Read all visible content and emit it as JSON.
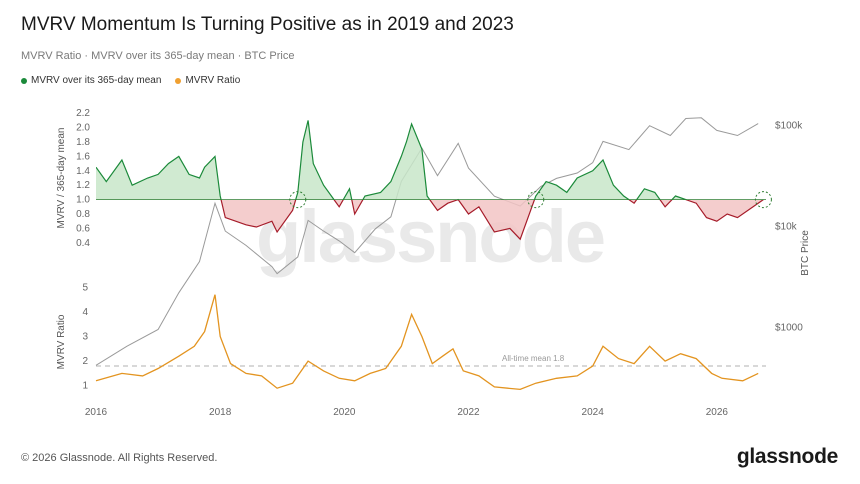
{
  "title": "MVRV Momentum Is Turning Positive as in 2019 and 2023",
  "subtitle": "MVRV Ratio · MVRV over its 365-day mean · BTC Price",
  "legend": [
    {
      "label": "MVRV over its 365-day mean",
      "color": "#1b8a3a"
    },
    {
      "label": "MVRV Ratio",
      "color": "#f0a030"
    }
  ],
  "footer": "© 2026 Glassnode. All Rights Reserved.",
  "brand": "glassnode",
  "watermark": "glassnode",
  "chart_data": {
    "type": "line",
    "x_ticks": [
      "2016",
      "2018",
      "2020",
      "2022",
      "2024",
      "2026"
    ],
    "panels": [
      {
        "name": "top",
        "ylabel": "MVRV / 365-day mean",
        "y_ticks": [
          "2.2",
          "2.0",
          "1.8",
          "1.6",
          "1.4",
          "1.2",
          "1.0",
          "0.8",
          "0.6",
          "0.4"
        ],
        "ylim": [
          0.3,
          2.3
        ],
        "baseline": 1.0,
        "colors": {
          "line_above": "#1b8a3a",
          "fill_above": "#c8e6c9",
          "line_below": "#a61c2a",
          "fill_below": "#f2c4c4"
        },
        "series": [
          {
            "name": "MVRV over its 365-day mean",
            "points": [
              [
                "2016-01",
                1.45
              ],
              [
                "2016-03",
                1.25
              ],
              [
                "2016-06",
                1.55
              ],
              [
                "2016-08",
                1.2
              ],
              [
                "2016-11",
                1.3
              ],
              [
                "2017-01",
                1.35
              ],
              [
                "2017-03",
                1.5
              ],
              [
                "2017-05",
                1.6
              ],
              [
                "2017-07",
                1.35
              ],
              [
                "2017-09",
                1.3
              ],
              [
                "2017-10",
                1.45
              ],
              [
                "2017-12",
                1.6
              ],
              [
                "2018-01",
                1.05
              ],
              [
                "2018-02",
                0.75
              ],
              [
                "2018-04",
                0.7
              ],
              [
                "2018-06",
                0.65
              ],
              [
                "2018-08",
                0.62
              ],
              [
                "2018-11",
                0.7
              ],
              [
                "2018-12",
                0.55
              ],
              [
                "2019-03",
                0.85
              ],
              [
                "2019-04",
                1.1
              ],
              [
                "2019-05",
                1.8
              ],
              [
                "2019-06",
                2.1
              ],
              [
                "2019-07",
                1.5
              ],
              [
                "2019-09",
                1.2
              ],
              [
                "2019-11",
                1.0
              ],
              [
                "2019-12",
                0.9
              ],
              [
                "2020-02",
                1.15
              ],
              [
                "2020-03",
                0.8
              ],
              [
                "2020-05",
                1.05
              ],
              [
                "2020-08",
                1.1
              ],
              [
                "2020-10",
                1.25
              ],
              [
                "2020-12",
                1.6
              ],
              [
                "2021-01",
                1.8
              ],
              [
                "2021-02",
                2.05
              ],
              [
                "2021-04",
                1.7
              ],
              [
                "2021-05",
                1.05
              ],
              [
                "2021-07",
                0.85
              ],
              [
                "2021-09",
                0.95
              ],
              [
                "2021-11",
                1.0
              ],
              [
                "2022-01",
                0.8
              ],
              [
                "2022-03",
                0.9
              ],
              [
                "2022-06",
                0.55
              ],
              [
                "2022-09",
                0.6
              ],
              [
                "2022-11",
                0.45
              ],
              [
                "2023-01",
                0.85
              ],
              [
                "2023-02",
                1.05
              ],
              [
                "2023-04",
                1.25
              ],
              [
                "2023-06",
                1.2
              ],
              [
                "2023-08",
                1.1
              ],
              [
                "2023-10",
                1.3
              ],
              [
                "2024-01",
                1.4
              ],
              [
                "2024-03",
                1.55
              ],
              [
                "2024-05",
                1.2
              ],
              [
                "2024-07",
                1.05
              ],
              [
                "2024-09",
                0.95
              ],
              [
                "2024-11",
                1.15
              ],
              [
                "2025-01",
                1.1
              ],
              [
                "2025-03",
                0.9
              ],
              [
                "2025-05",
                1.05
              ],
              [
                "2025-07",
                1.0
              ],
              [
                "2025-09",
                0.95
              ],
              [
                "2025-11",
                0.75
              ],
              [
                "2026-01",
                0.7
              ],
              [
                "2026-03",
                0.8
              ],
              [
                "2026-05",
                0.75
              ],
              [
                "2026-08",
                0.9
              ],
              [
                "2026-10",
                1.0
              ]
            ]
          }
        ],
        "annotations": [
          "2019-04",
          "2023-02",
          "2026-10"
        ]
      },
      {
        "name": "bottom",
        "ylabel": "MVRV Ratio",
        "y_ticks": [
          "5",
          "4",
          "3",
          "2",
          "1"
        ],
        "ylim": [
          0.5,
          5.5
        ],
        "reference_line": {
          "value": 1.8,
          "label": "All-time mean 1.8"
        },
        "series": [
          {
            "name": "MVRV Ratio",
            "color": "#e39420",
            "points": [
              [
                "2016-01",
                1.2
              ],
              [
                "2016-06",
                1.5
              ],
              [
                "2016-10",
                1.4
              ],
              [
                "2017-01",
                1.7
              ],
              [
                "2017-05",
                2.2
              ],
              [
                "2017-08",
                2.6
              ],
              [
                "2017-10",
                3.2
              ],
              [
                "2017-12",
                4.7
              ],
              [
                "2018-01",
                3.0
              ],
              [
                "2018-03",
                1.9
              ],
              [
                "2018-06",
                1.5
              ],
              [
                "2018-09",
                1.4
              ],
              [
                "2018-12",
                0.9
              ],
              [
                "2019-03",
                1.1
              ],
              [
                "2019-06",
                2.0
              ],
              [
                "2019-09",
                1.6
              ],
              [
                "2019-12",
                1.3
              ],
              [
                "2020-03",
                1.2
              ],
              [
                "2020-06",
                1.5
              ],
              [
                "2020-09",
                1.7
              ],
              [
                "2020-12",
                2.6
              ],
              [
                "2021-02",
                3.9
              ],
              [
                "2021-04",
                3.0
              ],
              [
                "2021-06",
                1.9
              ],
              [
                "2021-08",
                2.2
              ],
              [
                "2021-10",
                2.5
              ],
              [
                "2021-12",
                1.6
              ],
              [
                "2022-03",
                1.4
              ],
              [
                "2022-06",
                0.95
              ],
              [
                "2022-11",
                0.85
              ],
              [
                "2023-02",
                1.1
              ],
              [
                "2023-06",
                1.3
              ],
              [
                "2023-10",
                1.4
              ],
              [
                "2024-01",
                1.8
              ],
              [
                "2024-03",
                2.6
              ],
              [
                "2024-06",
                2.1
              ],
              [
                "2024-09",
                1.9
              ],
              [
                "2024-12",
                2.6
              ],
              [
                "2025-03",
                2.0
              ],
              [
                "2025-06",
                2.3
              ],
              [
                "2025-09",
                2.1
              ],
              [
                "2025-12",
                1.5
              ],
              [
                "2026-02",
                1.3
              ],
              [
                "2026-06",
                1.2
              ],
              [
                "2026-09",
                1.5
              ]
            ]
          }
        ]
      }
    ],
    "right_axis": {
      "label": "BTC Price",
      "scale": "log",
      "ticks": [
        "$100k",
        "$10k",
        "$1000"
      ],
      "series": [
        {
          "name": "BTC Price",
          "color": "#9a9a9a",
          "points": [
            [
              "2016-01",
              420
            ],
            [
              "2016-07",
              650
            ],
            [
              "2017-01",
              950
            ],
            [
              "2017-05",
              2200
            ],
            [
              "2017-09",
              4500
            ],
            [
              "2017-12",
              17000
            ],
            [
              "2018-02",
              9000
            ],
            [
              "2018-06",
              6500
            ],
            [
              "2018-11",
              4000
            ],
            [
              "2018-12",
              3400
            ],
            [
              "2019-04",
              5000
            ],
            [
              "2019-06",
              11500
            ],
            [
              "2019-09",
              9000
            ],
            [
              "2019-12",
              7200
            ],
            [
              "2020-03",
              5500
            ],
            [
              "2020-07",
              9500
            ],
            [
              "2020-10",
              12500
            ],
            [
              "2020-12",
              28000
            ],
            [
              "2021-04",
              60000
            ],
            [
              "2021-07",
              32000
            ],
            [
              "2021-11",
              67000
            ],
            [
              "2022-01",
              38000
            ],
            [
              "2022-06",
              20000
            ],
            [
              "2022-11",
              16000
            ],
            [
              "2023-03",
              25000
            ],
            [
              "2023-06",
              30000
            ],
            [
              "2023-10",
              34000
            ],
            [
              "2024-01",
              43000
            ],
            [
              "2024-03",
              70000
            ],
            [
              "2024-08",
              58000
            ],
            [
              "2024-12",
              100000
            ],
            [
              "2025-04",
              80000
            ],
            [
              "2025-07",
              118000
            ],
            [
              "2025-10",
              120000
            ],
            [
              "2026-01",
              90000
            ],
            [
              "2026-05",
              80000
            ],
            [
              "2026-09",
              105000
            ]
          ]
        }
      ]
    }
  }
}
